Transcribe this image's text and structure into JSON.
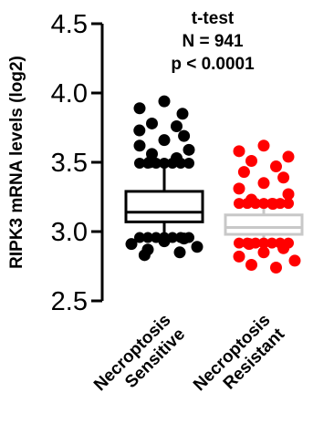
{
  "chart_data": {
    "type": "box",
    "ylabel": "RIPK3 mRNA levels  (log2)",
    "ylim": [
      2.5,
      4.5
    ],
    "yticks": [
      "2.5",
      "3.0",
      "3.5",
      "4.0",
      "4.5"
    ],
    "annotations": [
      "t-test",
      "N = 941",
      "p < 0.0001"
    ],
    "categories": [
      [
        "Necroptosis",
        "Sensitive"
      ],
      [
        "Necroptosis",
        "Resistant"
      ]
    ],
    "series": [
      {
        "color": "#000000",
        "box": {
          "q1": 3.07,
          "median": 3.14,
          "q3": 3.29,
          "whisker_low": 2.97,
          "whisker_high": 3.48
        },
        "outliers": [
          3.94,
          3.89,
          3.85,
          3.78,
          3.76,
          3.73,
          3.69,
          3.66,
          3.62,
          3.59,
          3.56,
          3.53,
          3.5,
          2.95,
          2.93,
          2.91,
          2.89,
          2.87,
          2.85,
          2.83
        ]
      },
      {
        "color": "#ff0000",
        "box": {
          "q1": 2.98,
          "median": 3.03,
          "q3": 3.12,
          "whisker_low": 2.93,
          "whisker_high": 3.19
        },
        "box_color": "#c8c8c8",
        "outliers": [
          3.62,
          3.58,
          3.54,
          3.51,
          3.47,
          3.43,
          3.39,
          3.35,
          3.31,
          3.27,
          3.23,
          3.2,
          2.91,
          2.88,
          2.85,
          2.82,
          2.79,
          2.76,
          2.74
        ]
      }
    ]
  }
}
